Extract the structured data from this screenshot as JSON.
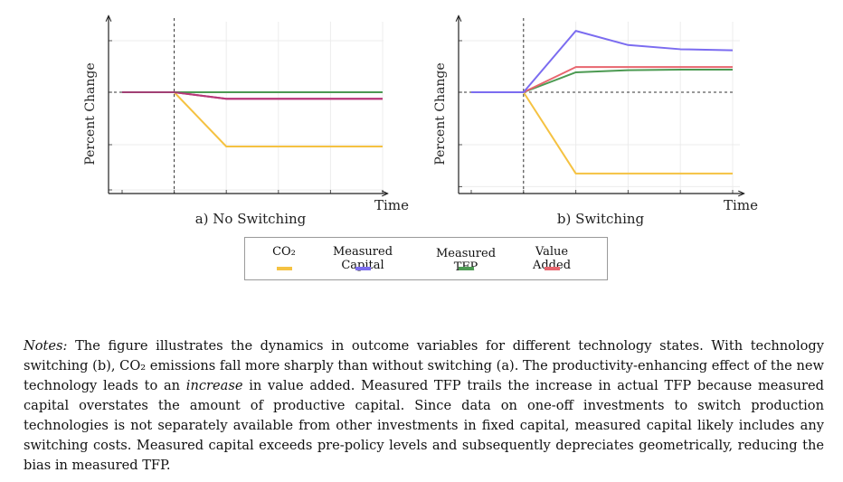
{
  "chart_data": [
    {
      "type": "line",
      "caption": "a) No Switching",
      "xlabel": "Time",
      "ylabel": "Percent Change",
      "x": [
        0,
        1,
        2,
        3,
        4,
        5
      ],
      "grid": true,
      "shock_x": 1,
      "series": [
        {
          "name": "CO₂",
          "color": "#F5C242",
          "values": [
            0,
            0,
            -1,
            -1,
            -1,
            -1
          ]
        },
        {
          "name": "Measured Capital",
          "color": "#7B6CF0",
          "values": [
            0,
            0,
            -0.12,
            -0.12,
            -0.12,
            -0.12
          ]
        },
        {
          "name": "Measured TFP",
          "color": "#4C9A52",
          "values": [
            0,
            0,
            0,
            0,
            0,
            0
          ]
        },
        {
          "name": "Value Added",
          "color": "#E8656E",
          "values": [
            0,
            0,
            -0.12,
            -0.12,
            -0.12,
            -0.12
          ]
        }
      ]
    },
    {
      "type": "line",
      "caption": "b) Switching",
      "xlabel": "Time",
      "ylabel": "Percent Change",
      "x": [
        0,
        1,
        2,
        3,
        4,
        5
      ],
      "grid": true,
      "shock_x": 1,
      "series": [
        {
          "name": "CO₂",
          "color": "#F5C242",
          "values": [
            0,
            0,
            -1.55,
            -1.55,
            -1.55,
            -1.55
          ]
        },
        {
          "name": "Measured Capital",
          "color": "#7B6CF0",
          "values": [
            0,
            0,
            1.17,
            0.9,
            0.82,
            0.8
          ]
        },
        {
          "name": "Measured TFP",
          "color": "#4C9A52",
          "values": [
            0,
            0,
            0.38,
            0.42,
            0.43,
            0.43
          ]
        },
        {
          "name": "Value Added",
          "color": "#E8656E",
          "values": [
            0,
            0,
            0.48,
            0.48,
            0.48,
            0.48
          ]
        }
      ]
    }
  ],
  "legend": {
    "entries": [
      {
        "label": "CO₂",
        "color": "#F5C242"
      },
      {
        "label": "Measured Capital",
        "color": "#7B6CF0"
      },
      {
        "label": "Measured TFP",
        "color": "#4C9A52"
      },
      {
        "label": "Value Added",
        "color": "#E8656E"
      }
    ]
  },
  "notes": {
    "lead": "Notes:",
    "p1": " The figure illustrates the dynamics in outcome variables for different technology states. With technology switching (b), CO₂ emissions fall more sharply than without switching (a). The productivity-enhancing effect of the new technology leads to an ",
    "emph": "increase",
    "p2": " in value added. Measured TFP trails the increase in actual TFP because measured capital overstates the amount of productive capital. Since data on one-off investments to switch production technologies is not separately available from other investments in fixed capital, measured capital likely includes any switching costs. Measured capital exceeds pre-policy levels and subsequently depreciates geometrically, reducing the bias in measured TFP."
  }
}
